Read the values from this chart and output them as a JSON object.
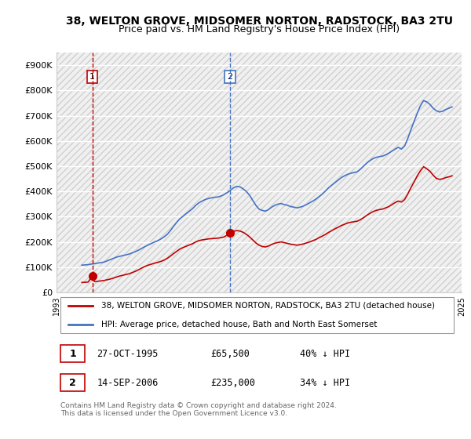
{
  "title1": "38, WELTON GROVE, MIDSOMER NORTON, RADSTOCK, BA3 2TU",
  "title2": "Price paid vs. HM Land Registry's House Price Index (HPI)",
  "ylabel_prefix": "£",
  "ylim": [
    0,
    950000
  ],
  "yticks": [
    0,
    100000,
    200000,
    300000,
    400000,
    500000,
    600000,
    700000,
    800000,
    900000
  ],
  "ytick_labels": [
    "£0",
    "£100K",
    "£200K",
    "£300K",
    "£400K",
    "£500K",
    "£600K",
    "£700K",
    "£800K",
    "£900K"
  ],
  "sale1_date": 1995.83,
  "sale1_price": 65500,
  "sale1_label": "1",
  "sale2_date": 2006.71,
  "sale2_price": 235000,
  "sale2_label": "2",
  "hpi_color": "#4472C4",
  "price_color": "#C00000",
  "vline_color_sale1": "#C00000",
  "vline_color_sale2": "#4472C4",
  "legend_label1": "38, WELTON GROVE, MIDSOMER NORTON, RADSTOCK, BA3 2TU (detached house)",
  "legend_label2": "HPI: Average price, detached house, Bath and North East Somerset",
  "table_row1": [
    "1",
    "27-OCT-1995",
    "£65,500",
    "40% ↓ HPI"
  ],
  "table_row2": [
    "2",
    "14-SEP-2006",
    "£235,000",
    "34% ↓ HPI"
  ],
  "footnote": "Contains HM Land Registry data © Crown copyright and database right 2024.\nThis data is licensed under the Open Government Licence v3.0.",
  "background_color": "#ffffff",
  "hatch_color": "#d0d0d0",
  "hpi_data_x": [
    1995.0,
    1995.25,
    1995.5,
    1995.75,
    1996.0,
    1996.25,
    1996.5,
    1996.75,
    1997.0,
    1997.25,
    1997.5,
    1997.75,
    1998.0,
    1998.25,
    1998.5,
    1998.75,
    1999.0,
    1999.25,
    1999.5,
    1999.75,
    2000.0,
    2000.25,
    2000.5,
    2000.75,
    2001.0,
    2001.25,
    2001.5,
    2001.75,
    2002.0,
    2002.25,
    2002.5,
    2002.75,
    2003.0,
    2003.25,
    2003.5,
    2003.75,
    2004.0,
    2004.25,
    2004.5,
    2004.75,
    2005.0,
    2005.25,
    2005.5,
    2005.75,
    2006.0,
    2006.25,
    2006.5,
    2006.75,
    2007.0,
    2007.25,
    2007.5,
    2007.75,
    2008.0,
    2008.25,
    2008.5,
    2008.75,
    2009.0,
    2009.25,
    2009.5,
    2009.75,
    2010.0,
    2010.25,
    2010.5,
    2010.75,
    2011.0,
    2011.25,
    2011.5,
    2011.75,
    2012.0,
    2012.25,
    2012.5,
    2012.75,
    2013.0,
    2013.25,
    2013.5,
    2013.75,
    2014.0,
    2014.25,
    2014.5,
    2014.75,
    2015.0,
    2015.25,
    2015.5,
    2015.75,
    2016.0,
    2016.25,
    2016.5,
    2016.75,
    2017.0,
    2017.25,
    2017.5,
    2017.75,
    2018.0,
    2018.25,
    2018.5,
    2018.75,
    2019.0,
    2019.25,
    2019.5,
    2019.75,
    2020.0,
    2020.25,
    2020.5,
    2020.75,
    2021.0,
    2021.25,
    2021.5,
    2021.75,
    2022.0,
    2022.25,
    2022.5,
    2022.75,
    2023.0,
    2023.25,
    2023.5,
    2023.75,
    2024.0,
    2024.25
  ],
  "hpi_data_y": [
    108000,
    109000,
    110000,
    112000,
    114000,
    116000,
    118000,
    120000,
    125000,
    130000,
    135000,
    140000,
    143000,
    146000,
    149000,
    152000,
    157000,
    162000,
    168000,
    175000,
    182000,
    188000,
    194000,
    200000,
    205000,
    212000,
    220000,
    230000,
    245000,
    262000,
    278000,
    292000,
    302000,
    312000,
    322000,
    332000,
    345000,
    355000,
    362000,
    368000,
    372000,
    375000,
    377000,
    378000,
    382000,
    388000,
    396000,
    405000,
    415000,
    420000,
    418000,
    410000,
    400000,
    385000,
    365000,
    345000,
    330000,
    325000,
    322000,
    328000,
    338000,
    345000,
    350000,
    352000,
    348000,
    345000,
    340000,
    338000,
    335000,
    338000,
    342000,
    348000,
    355000,
    362000,
    370000,
    380000,
    390000,
    402000,
    415000,
    425000,
    435000,
    445000,
    455000,
    462000,
    468000,
    472000,
    475000,
    478000,
    488000,
    500000,
    512000,
    522000,
    530000,
    535000,
    538000,
    540000,
    545000,
    552000,
    560000,
    568000,
    575000,
    568000,
    580000,
    610000,
    645000,
    678000,
    710000,
    740000,
    760000,
    755000,
    745000,
    730000,
    720000,
    715000,
    718000,
    725000,
    730000,
    735000
  ],
  "price_data_x": [
    1995.0,
    1995.25,
    1995.5,
    1995.83,
    1996.0,
    1996.25,
    1996.5,
    1996.75,
    1997.0,
    1997.25,
    1997.5,
    1997.75,
    1998.0,
    1998.25,
    1998.5,
    1998.75,
    1999.0,
    1999.25,
    1999.5,
    1999.75,
    2000.0,
    2000.25,
    2000.5,
    2000.75,
    2001.0,
    2001.25,
    2001.5,
    2001.75,
    2002.0,
    2002.25,
    2002.5,
    2002.75,
    2003.0,
    2003.25,
    2003.5,
    2003.75,
    2004.0,
    2004.25,
    2004.5,
    2004.75,
    2005.0,
    2005.25,
    2005.5,
    2005.75,
    2006.0,
    2006.25,
    2006.5,
    2006.71,
    2007.0,
    2007.25,
    2007.5,
    2007.75,
    2008.0,
    2008.25,
    2008.5,
    2008.75,
    2009.0,
    2009.25,
    2009.5,
    2009.75,
    2010.0,
    2010.25,
    2010.5,
    2010.75,
    2011.0,
    2011.25,
    2011.5,
    2011.75,
    2012.0,
    2012.25,
    2012.5,
    2012.75,
    2013.0,
    2013.25,
    2013.5,
    2013.75,
    2014.0,
    2014.25,
    2014.5,
    2014.75,
    2015.0,
    2015.25,
    2015.5,
    2015.75,
    2016.0,
    2016.25,
    2016.5,
    2016.75,
    2017.0,
    2017.25,
    2017.5,
    2017.75,
    2018.0,
    2018.25,
    2018.5,
    2018.75,
    2019.0,
    2019.25,
    2019.5,
    2019.75,
    2020.0,
    2020.25,
    2020.5,
    2020.75,
    2021.0,
    2021.25,
    2021.5,
    2021.75,
    2022.0,
    2022.25,
    2022.5,
    2022.75,
    2023.0,
    2023.25,
    2023.5,
    2023.75,
    2024.0,
    2024.25
  ],
  "price_data_y": [
    39300,
    40000,
    41000,
    65500,
    43000,
    44000,
    45500,
    47200,
    50000,
    53000,
    57000,
    61000,
    65000,
    68000,
    71000,
    74000,
    79000,
    84000,
    90000,
    97000,
    103000,
    108000,
    112000,
    116000,
    119000,
    123000,
    128000,
    135000,
    144000,
    154000,
    163000,
    172000,
    178000,
    183000,
    188000,
    193000,
    200000,
    205000,
    208000,
    210000,
    212000,
    213000,
    214000,
    215000,
    217000,
    220000,
    228000,
    235000,
    242000,
    245000,
    243000,
    238000,
    230000,
    220000,
    208000,
    196000,
    187000,
    182000,
    180000,
    184000,
    190000,
    195000,
    198000,
    200000,
    197000,
    194000,
    191000,
    189000,
    187000,
    189000,
    192000,
    196000,
    200000,
    205000,
    210000,
    217000,
    223000,
    230000,
    238000,
    245000,
    252000,
    258000,
    265000,
    270000,
    275000,
    278000,
    280000,
    282000,
    288000,
    296000,
    305000,
    313000,
    320000,
    325000,
    328000,
    330000,
    335000,
    340000,
    348000,
    356000,
    362000,
    358000,
    368000,
    390000,
    415000,
    438000,
    462000,
    482000,
    498000,
    490000,
    480000,
    465000,
    452000,
    448000,
    450000,
    455000,
    458000,
    462000
  ]
}
